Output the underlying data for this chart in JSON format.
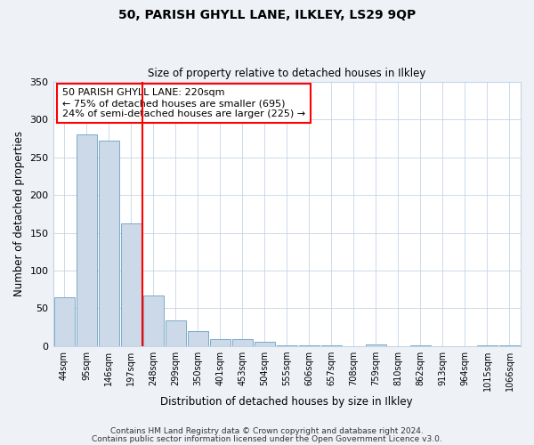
{
  "title": "50, PARISH GHYLL LANE, ILKLEY, LS29 9QP",
  "subtitle": "Size of property relative to detached houses in Ilkley",
  "xlabel": "Distribution of detached houses by size in Ilkley",
  "ylabel": "Number of detached properties",
  "bin_labels": [
    "44sqm",
    "95sqm",
    "146sqm",
    "197sqm",
    "248sqm",
    "299sqm",
    "350sqm",
    "401sqm",
    "453sqm",
    "504sqm",
    "555sqm",
    "606sqm",
    "657sqm",
    "708sqm",
    "759sqm",
    "810sqm",
    "862sqm",
    "913sqm",
    "964sqm",
    "1015sqm",
    "1066sqm"
  ],
  "bar_values": [
    65,
    281,
    272,
    163,
    67,
    34,
    20,
    9,
    9,
    5,
    1,
    1,
    1,
    0,
    2,
    0,
    1,
    0,
    0,
    1,
    1
  ],
  "bar_color": "#ccd9e8",
  "bar_edge_color": "#7aaac8",
  "vline_x": 3.5,
  "vline_color": "red",
  "ylim": [
    0,
    350
  ],
  "yticks": [
    0,
    50,
    100,
    150,
    200,
    250,
    300,
    350
  ],
  "annotation_title": "50 PARISH GHYLL LANE: 220sqm",
  "annotation_line1": "← 75% of detached houses are smaller (695)",
  "annotation_line2": "24% of semi-detached houses are larger (225) →",
  "footer_line1": "Contains HM Land Registry data © Crown copyright and database right 2024.",
  "footer_line2": "Contains public sector information licensed under the Open Government Licence v3.0.",
  "background_color": "#eef2f7",
  "plot_bg_color": "#ffffff",
  "title_fontsize": 10,
  "subtitle_fontsize": 8.5,
  "annotation_fontsize": 8,
  "xlabel_fontsize": 8.5,
  "ylabel_fontsize": 8.5,
  "xtick_fontsize": 7,
  "ytick_fontsize": 8,
  "footer_fontsize": 6.5,
  "grid_color": "#c5d5e5"
}
